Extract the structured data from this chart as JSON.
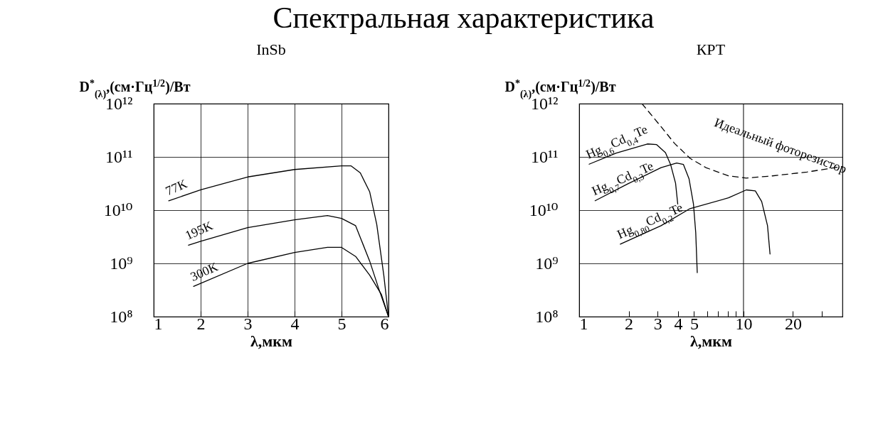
{
  "chart_data": [
    {
      "type": "line",
      "title": "Спектральная характеристика",
      "subtitle": "InSb",
      "xlabel": "λ,мкм",
      "ylabel": "D$^{*}$$_{(λ)}$,(см·Гц$^{1/2}$)/Вт",
      "log": "y",
      "xlim": [
        1,
        6
      ],
      "xticks": [
        1,
        2,
        3,
        4,
        5,
        6
      ],
      "ylim": [
        100000000.0,
        1000000000000.0
      ],
      "yticks": [
        {
          "value": 100000000.0,
          "label": "10⁸"
        },
        {
          "value": 1000000000.0,
          "label": "10⁹"
        },
        {
          "value": 10000000000.0,
          "label": "10¹⁰"
        },
        {
          "value": 100000000000.0,
          "label": "10¹¹"
        },
        {
          "value": 1000000000000.0,
          "label": "10¹²"
        }
      ],
      "grid": true,
      "series": [
        {
          "name": "77K",
          "color": "#000000",
          "x": [
            1.32,
            2,
            3,
            4,
            5,
            5.2,
            5.4,
            5.6,
            5.75,
            5.9,
            6
          ],
          "values": [
            15000000000.0,
            24000000000.0,
            42000000000.0,
            58000000000.0,
            68000000000.0,
            68000000000.0,
            50000000000.0,
            22000000000.0,
            5400000000.0,
            600000000.0,
            100000000.0
          ]
        },
        {
          "name": "195K",
          "color": "#000000",
          "x": [
            1.74,
            2,
            3,
            4,
            4.7,
            5,
            5.3,
            5.6,
            5.8,
            6
          ],
          "values": [
            2200000000.0,
            2600000000.0,
            4700000000.0,
            6600000000.0,
            7900000000.0,
            7000000000.0,
            5100000000.0,
            1100000000.0,
            320000000.0,
            100000000.0
          ]
        },
        {
          "name": "300K",
          "color": "#000000",
          "x": [
            1.85,
            3,
            4,
            4.7,
            5,
            5.3,
            5.6,
            5.85,
            6
          ],
          "values": [
            370000000.0,
            1000000000.0,
            1600000000.0,
            2000000000.0,
            2000000000.0,
            1350000000.0,
            600000000.0,
            260000000.0,
            100000000.0
          ]
        }
      ]
    },
    {
      "type": "line",
      "subtitle": "КРТ",
      "xlabel": "λ,мкм",
      "ylabel": "D$^{*}$$_{(λ)}$,(см·Гц$^{1/2}$)/Вт",
      "log": "xy",
      "xlim": [
        1,
        40
      ],
      "xticks": [
        1,
        2,
        3,
        4,
        5,
        {
          "value": 6,
          "label": null
        },
        {
          "value": 7,
          "label": null
        },
        {
          "value": 8,
          "label": null
        },
        {
          "value": 9,
          "label": null
        },
        10,
        20,
        {
          "value": 30,
          "label": null
        }
      ],
      "ylim": [
        100000000.0,
        1000000000000.0
      ],
      "yticks": [
        {
          "value": 100000000.0,
          "label": "10⁸"
        },
        {
          "value": 1000000000.0,
          "label": "10⁹"
        },
        {
          "value": 10000000000.0,
          "label": "10¹⁰"
        },
        {
          "value": 100000000000.0,
          "label": "10¹¹"
        },
        {
          "value": 1000000000000.0,
          "label": "10¹²"
        }
      ],
      "grid": "y",
      "ref_lines": [
        {
          "axis": "x",
          "value": 10
        }
      ],
      "series": [
        {
          "name": "Hg$_{0,6}$Cd$_{0,4}$Te",
          "color": "#000000",
          "x": [
            1.15,
            1.68,
            2.6,
            2.96,
            3.35,
            3.6,
            3.86,
            3.98
          ],
          "values": [
            73000000000.0,
            118000000000.0,
            175000000000.0,
            170000000000.0,
            120000000000.0,
            72000000000.0,
            32000000000.0,
            13000000000.0
          ]
        },
        {
          "name": "Hg$_{0,7}$Cd$_{0,3}$Te",
          "color": "#000000",
          "x": [
            1.25,
            1.97,
            3.15,
            3.92,
            4.31,
            4.66,
            4.96,
            5.12,
            5.23
          ],
          "values": [
            15000000000.0,
            31000000000.0,
            63000000000.0,
            77000000000.0,
            72000000000.0,
            39000000000.0,
            13000000000.0,
            3800000000.0,
            670000000.0
          ]
        },
        {
          "name": "Hg$_{0,80}$Cd$_{0,2}$Te",
          "color": "#000000",
          "x": [
            1.78,
            3.15,
            4.73,
            8.1,
            10.4,
            11.8,
            12.9,
            14,
            14.5
          ],
          "values": [
            2300000000.0,
            5100000000.0,
            10700000000.0,
            17000000000.0,
            24000000000.0,
            23000000000.0,
            14500000000.0,
            5100000000.0,
            1500000000.0
          ]
        },
        {
          "name": "Идеальный фоторезистор",
          "color": "#000000",
          "line_style": "dashed",
          "x": [
            2.41,
            3.15,
            3.8,
            4.73,
            5.9,
            8.1,
            10.4,
            15,
            24.3,
            40
          ],
          "values": [
            1000000000000.0,
            370000000000.0,
            180000000000.0,
            94000000000.0,
            63000000000.0,
            44000000000.0,
            40000000000.0,
            44000000000.0,
            52000000000.0,
            66000000000.0
          ]
        }
      ]
    }
  ]
}
